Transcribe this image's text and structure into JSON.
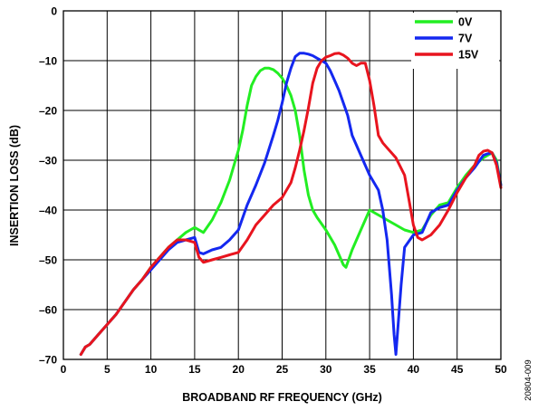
{
  "chart_data": {
    "type": "line",
    "title": "",
    "xlabel": "BROADBAND RF FREQUENCY (GHz)",
    "ylabel": "INSERTION LOSS (dB)",
    "xlim": [
      0,
      50
    ],
    "ylim": [
      -70,
      0
    ],
    "xticks": [
      0,
      5,
      10,
      15,
      20,
      25,
      30,
      35,
      40,
      45,
      50
    ],
    "yticks": [
      0,
      -10,
      -20,
      -30,
      -40,
      -50,
      -60,
      -70
    ],
    "xtick_labels": [
      "0",
      "5",
      "10",
      "15",
      "20",
      "25",
      "30",
      "35",
      "40",
      "45",
      "50"
    ],
    "ytick_labels": [
      "0",
      "–10",
      "–20",
      "–30",
      "–40",
      "–50",
      "–60",
      "–70"
    ],
    "grid": true,
    "legend_position": "top-right",
    "figure_id": "20804-009",
    "series": [
      {
        "name": "0V",
        "color": "#22ee22",
        "x": [
          2,
          2.5,
          3,
          4,
          5,
          6,
          7,
          8,
          9,
          10,
          11,
          12,
          13,
          14,
          14.5,
          15,
          16,
          17,
          18,
          19,
          20,
          20.5,
          21,
          21.5,
          22,
          22.5,
          23,
          23.5,
          24,
          24.5,
          25,
          25.5,
          26,
          26.5,
          27,
          27.5,
          28,
          28.5,
          29,
          30,
          31,
          32,
          32.3,
          33,
          34,
          35,
          36,
          37,
          38,
          39,
          40,
          41,
          42,
          43,
          44,
          45,
          46,
          47,
          48,
          48.5,
          49,
          49.5,
          50
        ],
        "y": [
          -69,
          -67.5,
          -67,
          -65,
          -63,
          -61,
          -58.5,
          -56,
          -54,
          -51.5,
          -49.5,
          -47.5,
          -46,
          -44.5,
          -44,
          -43.5,
          -44.5,
          -42,
          -38.5,
          -34,
          -28,
          -24,
          -19,
          -15,
          -13.2,
          -12,
          -11.5,
          -11.5,
          -11.8,
          -12.5,
          -13.5,
          -15,
          -17,
          -20,
          -25,
          -32,
          -37,
          -40,
          -41.5,
          -44,
          -47,
          -51,
          -51.5,
          -48,
          -44,
          -40,
          -41,
          -42,
          -43,
          -44,
          -44.5,
          -44,
          -41,
          -39,
          -38.5,
          -35.5,
          -33,
          -31,
          -29.5,
          -29,
          -28.5,
          -30,
          -35
        ]
      },
      {
        "name": "7V",
        "color": "#1428f0",
        "x": [
          2,
          2.5,
          3,
          4,
          5,
          6,
          7,
          8,
          9,
          10,
          11,
          12,
          13,
          14,
          15,
          15.5,
          16,
          17,
          18,
          19,
          20,
          21,
          22,
          23,
          24,
          24.5,
          25,
          25.5,
          26,
          26.5,
          27,
          27.5,
          28,
          28.5,
          29,
          29.5,
          30,
          30.5,
          31,
          31.5,
          32,
          32.5,
          33,
          34,
          35,
          36,
          36.5,
          37,
          37.5,
          37.8,
          38,
          38.3,
          38.6,
          39,
          40,
          41,
          42,
          43,
          44,
          45,
          46,
          47,
          48,
          48.5,
          49,
          49.5,
          50
        ],
        "y": [
          -69,
          -67.5,
          -67,
          -65,
          -63,
          -61,
          -58.5,
          -56,
          -54,
          -52,
          -50,
          -48,
          -46.5,
          -46,
          -45.5,
          -48.5,
          -48.8,
          -48,
          -47.5,
          -46,
          -44,
          -39,
          -35,
          -30.5,
          -25,
          -22,
          -18.5,
          -14.5,
          -11.5,
          -9.2,
          -8.5,
          -8.5,
          -8.7,
          -9,
          -9.5,
          -10,
          -10.5,
          -12,
          -14,
          -16,
          -18.5,
          -21,
          -25,
          -29,
          -33,
          -36,
          -40,
          -46,
          -57,
          -65,
          -69,
          -62,
          -55,
          -47.5,
          -45,
          -44.5,
          -40.5,
          -39.5,
          -39,
          -36,
          -33.5,
          -31.5,
          -29,
          -28.7,
          -28.5,
          -30.5,
          -35
        ]
      },
      {
        "name": "15V",
        "color": "#e8141e",
        "x": [
          2,
          2.5,
          3,
          4,
          5,
          6,
          7,
          8,
          9,
          10,
          11,
          12,
          13,
          14,
          15,
          15.5,
          16,
          17,
          18,
          19,
          20,
          21,
          22,
          23,
          24,
          25,
          26,
          26.5,
          27,
          27.5,
          28,
          28.5,
          29,
          29.5,
          30,
          30.5,
          31,
          31.5,
          32,
          32.5,
          33,
          33.5,
          34,
          34.5,
          35,
          35.5,
          36,
          36.5,
          37,
          38,
          39,
          39.5,
          40,
          40.5,
          41,
          42,
          43,
          44,
          45,
          46,
          47,
          47.5,
          48,
          48.5,
          49,
          49.5,
          50
        ],
        "y": [
          -69,
          -67.5,
          -67,
          -65,
          -63,
          -61,
          -58.5,
          -56,
          -54,
          -51.5,
          -49.5,
          -47.5,
          -46,
          -46,
          -46.5,
          -49.5,
          -50.5,
          -50,
          -49.5,
          -49,
          -48.5,
          -46,
          -43,
          -41,
          -39,
          -37.5,
          -34.5,
          -31.5,
          -28,
          -24,
          -19.5,
          -14.5,
          -11.5,
          -10,
          -9.3,
          -9,
          -8.6,
          -8.5,
          -8.9,
          -9.5,
          -10.5,
          -11,
          -10.5,
          -10.5,
          -14,
          -19,
          -25,
          -26.5,
          -27.5,
          -29.5,
          -33,
          -38,
          -43,
          -45.5,
          -46,
          -45,
          -43,
          -40,
          -36.5,
          -33.5,
          -31,
          -29,
          -28.2,
          -28,
          -28.5,
          -31,
          -35.5
        ]
      }
    ]
  }
}
